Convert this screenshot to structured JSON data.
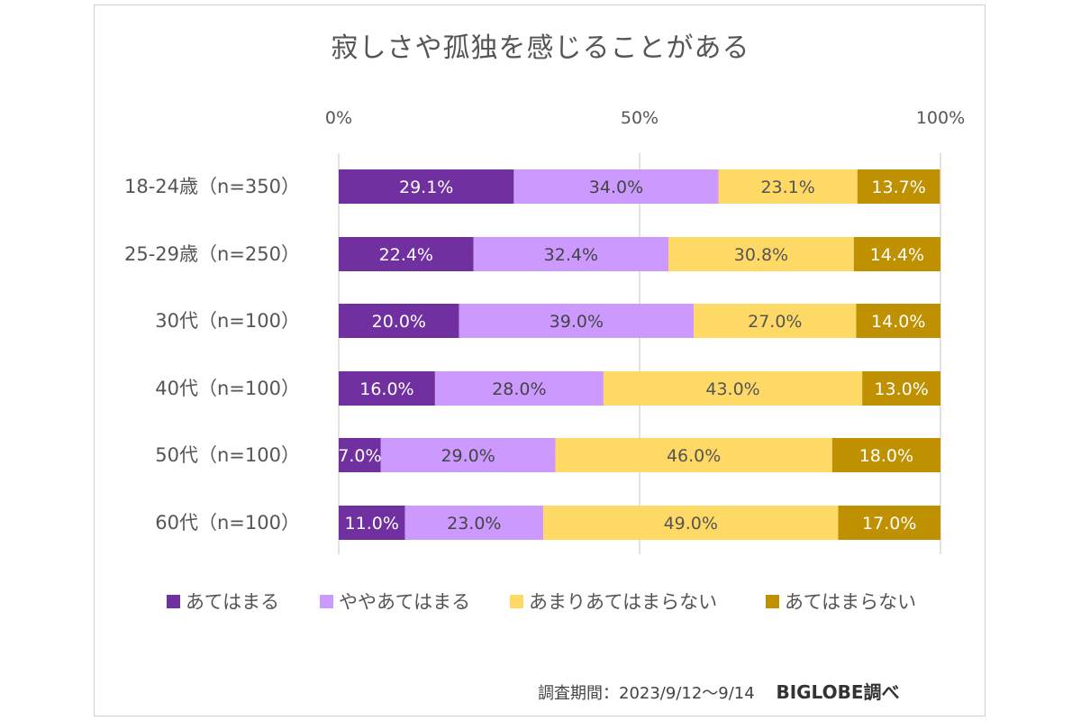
{
  "chart_data": {
    "type": "bar",
    "orientation": "horizontal",
    "stacked": true,
    "title": "寂しさや孤独を感じることがある",
    "categories": [
      "18-24歳（n=350）",
      "25-29歳（n=250）",
      "30代（n=100）",
      "40代（n=100）",
      "50代（n=100）",
      "60代（n=100）"
    ],
    "series": [
      {
        "name": "あてはまる",
        "color": "#7030a0",
        "values": [
          29.1,
          22.4,
          20.0,
          16.0,
          7.0,
          11.0
        ]
      },
      {
        "name": "ややあてはまる",
        "color": "#cc99ff",
        "values": [
          34.0,
          32.4,
          39.0,
          28.0,
          29.0,
          23.0
        ]
      },
      {
        "name": "あまりあてはまらない",
        "color": "#ffd966",
        "values": [
          23.1,
          30.8,
          27.0,
          43.0,
          46.0,
          49.0
        ]
      },
      {
        "name": "あてはまらない",
        "color": "#bf9000",
        "values": [
          13.7,
          14.4,
          14.0,
          13.0,
          18.0,
          17.0
        ]
      }
    ],
    "xlim": [
      0,
      100
    ],
    "x_ticks": [
      "0%",
      "50%",
      "100%"
    ],
    "grid": true,
    "legend_position": "bottom"
  },
  "source": {
    "period": "調査期間：2023/9/12～9/14",
    "brand": "BIGLOBE調べ"
  }
}
